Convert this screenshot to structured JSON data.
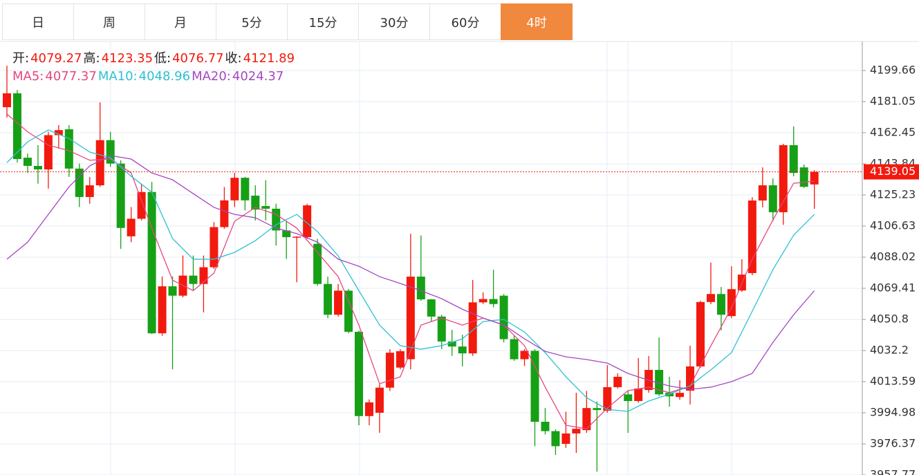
{
  "tabs": [
    "日",
    "周",
    "月",
    "5分",
    "15分",
    "30分",
    "60分",
    "4时"
  ],
  "active_tab": 7,
  "chart_data": {
    "type": "candlestick",
    "info": [
      {
        "label": "开:",
        "value": 4079.27
      },
      {
        "label": "高:",
        "value": 4123.35
      },
      {
        "label": "低:",
        "value": 4076.77
      },
      {
        "label": "收:",
        "value": 4121.89
      }
    ],
    "up_color": "#f21a0e",
    "down_color": "#16a016",
    "open": [
      4177.7,
      4186,
      4147.5,
      4142.6,
      4140.5,
      4161,
      4164.5,
      4141,
      4124,
      4131,
      4158,
      4144,
      4100.5,
      4111,
      4127,
      4042.5,
      4070.6,
      4065,
      4077,
      4072,
      4082,
      4106,
      4122,
      4135.5,
      4124.8,
      4118.6,
      4117,
      4104,
      4100,
      4100,
      4096,
      4072,
      4053.6,
      4068,
      4043.4,
      3993,
      3995,
      4010,
      4022,
      4027,
      4076.4,
      4062.8,
      4052.5,
      4037.6,
      4034.6,
      4030.5,
      4061,
      4063,
      4065,
      4039,
      4027,
      4032,
      3989.6,
      3984,
      3976.4,
      3982.6,
      3984.6,
      3997.8,
      3996.2,
      4010.3,
      4006,
      4002,
      4008.6,
      4020.6,
      4006.9,
      4004.4,
      4008.2,
      4022.7,
      4061.2,
      4066,
      4052.8,
      4068.1,
      4078.5,
      4121.9,
      4131,
      4114.9,
      4155,
      4141.7,
      4131.5
    ],
    "high": [
      4202.5,
      4188,
      4150,
      4155,
      4163,
      4167,
      4167,
      4144,
      4136,
      4180.6,
      4163,
      4146,
      4118,
      4132,
      4133,
      4076.5,
      4076.5,
      4089,
      4089,
      4089,
      4109,
      4130,
      4138.4,
      4136,
      4131,
      4134,
      4120,
      4109.5,
      4100.5,
      4120,
      4099,
      4076.4,
      4072,
      4069,
      4044,
      4003,
      4012,
      4033,
      4033,
      4102,
      4101,
      4063,
      4053.6,
      4044.6,
      4041.7,
      4074.4,
      4067,
      4080.5,
      4066,
      4041,
      4033,
      4033,
      3997.8,
      3985,
      3995.6,
      4006.9,
      4008,
      4001.7,
      4023.5,
      4018.6,
      4008,
      4027.7,
      4028.9,
      4040,
      4016.5,
      4014.4,
      4035.1,
      4062,
      4084.8,
      4070.2,
      4082.6,
      4086.8,
      4123.9,
      4141.7,
      4135.1,
      4155.8,
      4166.2,
      4143.4,
      4140
    ],
    "low": [
      4171.5,
      4144.6,
      4138.4,
      4132,
      4129,
      4153,
      4136,
      4118,
      4120,
      4130,
      4142,
      4093,
      4097,
      4110,
      4042,
      4041,
      4021,
      4064,
      4068,
      4055,
      4081,
      4105,
      4118,
      4116,
      4110,
      4110,
      4095,
      4087,
      4073,
      4099,
      4071,
      4051.5,
      4052.5,
      4042.5,
      3987.5,
      3987.5,
      3983,
      4008,
      4021,
      4021,
      4062,
      4049.6,
      4033,
      4029,
      4022.7,
      4029,
      4060,
      4058,
      4037,
      4026,
      4023,
      3975,
      3982,
      3969.7,
      3974,
      3971,
      3983,
      3959.8,
      3995,
      4009.5,
      3983,
      4001,
      4007,
      4005,
      3998.6,
      4002.8,
      3999.9,
      4021.9,
      4059.9,
      4044.2,
      4051.5,
      4067.3,
      4077.2,
      4117.8,
      4109.5,
      4107.4,
      4136.4,
      4129.4,
      4117
    ],
    "close": [
      4186,
      4146.7,
      4142.6,
      4140.5,
      4161,
      4164,
      4141,
      4124,
      4131,
      4158,
      4144,
      4105.5,
      4111,
      4127,
      4042.5,
      4070.6,
      4065,
      4077,
      4072,
      4082,
      4106,
      4122,
      4135.5,
      4122,
      4116.5,
      4117,
      4104,
      4100,
      4100.3,
      4119,
      4072,
      4053.6,
      4068,
      4043.4,
      3993,
      4001.2,
      4010,
      4030.9,
      4031.8,
      4076.4,
      4062.8,
      4052.5,
      4037.6,
      4034.6,
      4030.5,
      4061,
      4063,
      4060,
      4039,
      4027,
      4032,
      3989.6,
      3984,
      3975,
      3982.6,
      3985.4,
      3997.8,
      3996.6,
      4010.3,
      4016.5,
      4002,
      4009.5,
      4020.6,
      4006,
      4004.8,
      4006.9,
      4022.7,
      4061.2,
      4066,
      4053.6,
      4068.9,
      4077.6,
      4121.9,
      4131,
      4114.9,
      4155,
      4138.4,
      4130.1,
      4139.05
    ],
    "series": [
      {
        "name": "MA5:",
        "legend_value": 4077.37,
        "color": "#e8457f",
        "x": [
          0,
          2,
          4,
          6,
          8,
          10,
          12,
          14,
          16,
          18,
          20,
          22,
          24,
          26,
          28,
          30,
          32,
          34,
          36,
          38,
          40,
          42,
          44,
          46,
          48,
          50,
          52,
          54,
          56,
          58,
          60,
          62,
          64,
          66,
          68,
          70,
          72,
          74,
          76,
          78
        ],
        "values": [
          4173.6,
          4163,
          4155,
          4151.7,
          4146,
          4146.7,
          4138.4,
          4105.4,
          4074.3,
          4068,
          4078.5,
          4109.5,
          4117.8,
          4113.6,
          4105.4,
          4090.9,
          4076.4,
          4047.4,
          4012.3,
          4016.5,
          4047.4,
          4051.6,
          4047.4,
          4051.6,
          4047.4,
          4035.1,
          4010.3,
          3987.5,
          3985.4,
          3997.8,
          4008.2,
          4010.3,
          4007,
          4011,
          4035,
          4057.8,
          4086.8,
          4110.3,
          4132.2,
          4133.5
        ]
      },
      {
        "name": "MA10:",
        "legend_value": 4048.96,
        "color": "#2dc0d2",
        "x": [
          0,
          2,
          4,
          6,
          8,
          10,
          12,
          14,
          16,
          18,
          20,
          22,
          24,
          26,
          28,
          30,
          32,
          34,
          36,
          38,
          40,
          42,
          44,
          46,
          48,
          50,
          52,
          54,
          56,
          58,
          60,
          62,
          64,
          66,
          68,
          70,
          72,
          74,
          76,
          78
        ],
        "values": [
          4144.6,
          4157,
          4164.1,
          4159,
          4150.9,
          4147.5,
          4136.4,
          4126.9,
          4099.2,
          4086.8,
          4086.8,
          4090.9,
          4097.9,
          4107.4,
          4113.6,
          4103.3,
          4088.8,
          4068,
          4047.4,
          4035.1,
          4033,
          4035.1,
          4039.2,
          4049.5,
          4050.8,
          4043.3,
          4030.9,
          4016.5,
          4004,
          3997,
          3995.8,
          4002,
          4006.1,
          4011.1,
          4020.6,
          4031,
          4055.7,
          4080.6,
          4101.2,
          4113.6
        ]
      },
      {
        "name": "MA20:",
        "legend_value": 4024.37,
        "color": "#a646c2",
        "x": [
          0,
          2,
          4,
          6,
          8,
          10,
          12,
          14,
          16,
          18,
          20,
          22,
          24,
          26,
          28,
          30,
          32,
          34,
          36,
          38,
          40,
          42,
          44,
          46,
          48,
          50,
          52,
          54,
          56,
          58,
          60,
          62,
          64,
          66,
          68,
          70,
          72,
          74,
          76,
          78
        ],
        "values": [
          4086.8,
          4097,
          4113.6,
          4130.1,
          4142.6,
          4148.8,
          4146.7,
          4138.4,
          4134.3,
          4126,
          4117.8,
          4113.6,
          4111.6,
          4105.4,
          4102.1,
          4097,
          4086.8,
          4082.6,
          4076.4,
          4072.3,
          4068,
          4063.2,
          4056.9,
          4051.6,
          4047.5,
          4039.2,
          4031.7,
          4028.4,
          4026.8,
          4024.7,
          4018.5,
          4014.4,
          4011,
          4009,
          4010.3,
          4013.6,
          4018.5,
          4037.1,
          4053.6,
          4068
        ]
      }
    ],
    "last_price": 4139.05,
    "ylim": [
      3957.77,
      4217
    ],
    "yticks": [
      3957.77,
      3976.37,
      3994.98,
      4013.59,
      4032.2,
      4050.8,
      4069.41,
      4088.02,
      4106.63,
      4125.23,
      4143.84,
      4162.45,
      4181.05,
      4199.66
    ],
    "grid": true
  }
}
